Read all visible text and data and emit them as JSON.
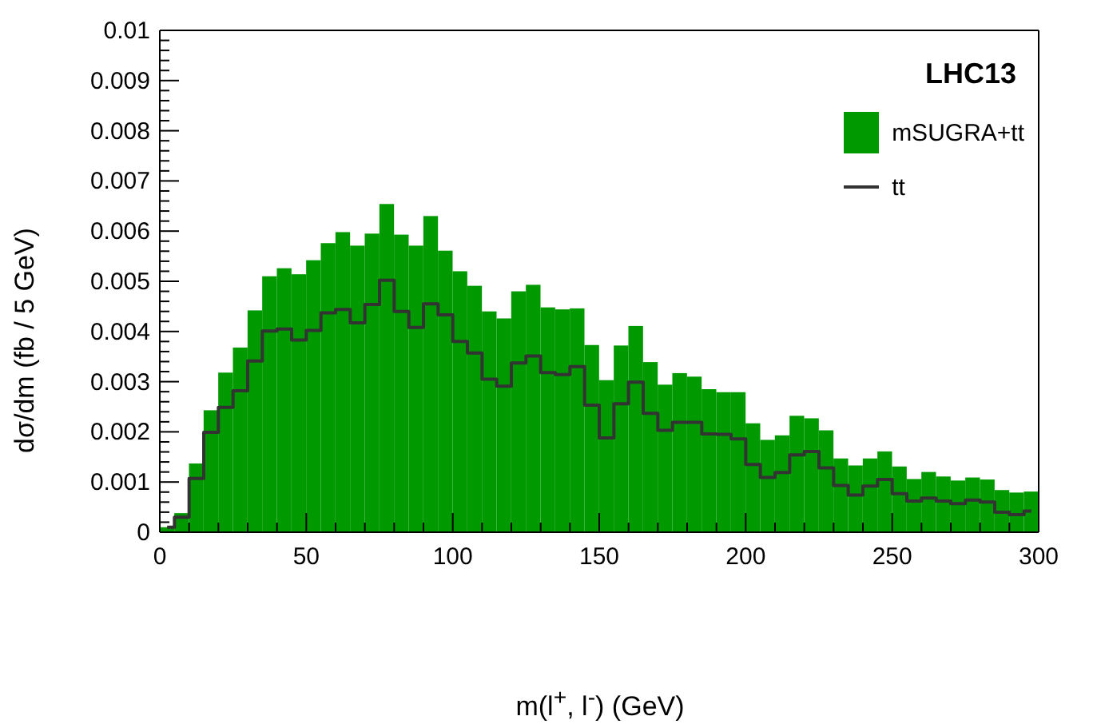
{
  "chart_data": {
    "type": "histogram",
    "xlabel": "m(l$^{+}$, l$^{-}$) (GeV)",
    "ylabel": "dσ/dm (fb / 5 GeV)",
    "annotations": [
      "LHC13"
    ],
    "legend": "top right",
    "grid": false,
    "bins": [
      0,
      5,
      10,
      15,
      20,
      25,
      30,
      35,
      40,
      45,
      50,
      55,
      60,
      65,
      70,
      75,
      80,
      85,
      90,
      95,
      100,
      105,
      110,
      115,
      120,
      125,
      130,
      135,
      140,
      145,
      150,
      155,
      160,
      165,
      170,
      175,
      180,
      185,
      190,
      195,
      200,
      205,
      210,
      215,
      220,
      225,
      230,
      235,
      240,
      245,
      250,
      255,
      260,
      265,
      270,
      275,
      280,
      285,
      290,
      295,
      300
    ],
    "series": [
      {
        "name": "mSUGRA+tt",
        "color": "#009900",
        "values": [
          0.0001,
          0.00038,
          0.00137,
          0.00243,
          0.00318,
          0.00368,
          0.00442,
          0.0051,
          0.00526,
          0.00514,
          0.00542,
          0.00576,
          0.00598,
          0.00571,
          0.00595,
          0.00654,
          0.00593,
          0.00571,
          0.0063,
          0.00561,
          0.0052,
          0.00491,
          0.0044,
          0.00426,
          0.0048,
          0.00493,
          0.00448,
          0.00444,
          0.00446,
          0.00373,
          0.00303,
          0.00372,
          0.00411,
          0.00339,
          0.00294,
          0.00317,
          0.0031,
          0.00285,
          0.00279,
          0.00279,
          0.00217,
          0.00184,
          0.00193,
          0.00232,
          0.00227,
          0.00203,
          0.00147,
          0.00133,
          0.00147,
          0.00161,
          0.00131,
          0.00106,
          0.0012,
          0.00111,
          0.00103,
          0.00109,
          0.00105,
          0.00084,
          0.00079,
          0.00081
        ]
      },
      {
        "name": "tt",
        "type": "step",
        "color": "#333333",
        "x": [
          2.5,
          7.5,
          12.5,
          17.5,
          22.5,
          27.5,
          32.5,
          37.5,
          42.5,
          47.5,
          52.5,
          57.5,
          62.5,
          67.5,
          72.5,
          77.5,
          82.5,
          87.5,
          92.5,
          97.5,
          102.5,
          107.5,
          112.5,
          117.5,
          122.5,
          127.5,
          132.5,
          137.5,
          142.5,
          147.5,
          152.5,
          157.5,
          162.5,
          167.5,
          172.5,
          177.5,
          182.5,
          187.5,
          192.5,
          197.5,
          202.5,
          207.5,
          212.5,
          217.5,
          222.5,
          227.5,
          232.5,
          237.5,
          242.5,
          247.5,
          252.5,
          257.5,
          262.5,
          267.5,
          272.5,
          277.5,
          282.5,
          287.5,
          292.5,
          297.5
        ],
        "values": [
          0.0001,
          0.0003,
          0.00107,
          0.00199,
          0.00249,
          0.00282,
          0.00341,
          0.00401,
          0.00405,
          0.00383,
          0.00402,
          0.00437,
          0.00444,
          0.00417,
          0.00454,
          0.00502,
          0.0044,
          0.00408,
          0.00455,
          0.00433,
          0.0038,
          0.00357,
          0.00305,
          0.00291,
          0.00337,
          0.00351,
          0.00318,
          0.00314,
          0.0033,
          0.00253,
          0.00188,
          0.00256,
          0.00299,
          0.00237,
          0.00203,
          0.00219,
          0.00219,
          0.00196,
          0.00195,
          0.00186,
          0.00135,
          0.00109,
          0.00119,
          0.00154,
          0.00161,
          0.00128,
          0.00093,
          0.00074,
          0.00092,
          0.00105,
          0.00077,
          0.00062,
          0.00068,
          0.00062,
          0.00057,
          0.00064,
          0.0006,
          0.0004,
          0.00035,
          0.00042
        ]
      }
    ],
    "xlim": [
      0,
      300
    ],
    "xticks": [
      0,
      {
        "value": 10,
        "label": null
      },
      {
        "value": 20,
        "label": null
      },
      {
        "value": 30,
        "label": null
      },
      {
        "value": 40,
        "label": null
      },
      50,
      {
        "value": 60,
        "label": null
      },
      {
        "value": 70,
        "label": null
      },
      {
        "value": 80,
        "label": null
      },
      {
        "value": 90,
        "label": null
      },
      100,
      {
        "value": 110,
        "label": null
      },
      {
        "value": 120,
        "label": null
      },
      {
        "value": 130,
        "label": null
      },
      {
        "value": 140,
        "label": null
      },
      150,
      {
        "value": 160,
        "label": null
      },
      {
        "value": 170,
        "label": null
      },
      {
        "value": 180,
        "label": null
      },
      {
        "value": 190,
        "label": null
      },
      200,
      {
        "value": 210,
        "label": null
      },
      {
        "value": 220,
        "label": null
      },
      {
        "value": 230,
        "label": null
      },
      {
        "value": 240,
        "label": null
      },
      250,
      {
        "value": 260,
        "label": null
      },
      {
        "value": 270,
        "label": null
      },
      {
        "value": 280,
        "label": null
      },
      {
        "value": 290,
        "label": null
      },
      300
    ],
    "ylim": [
      0,
      0.01
    ],
    "yticks": [
      0,
      {
        "value": 0.0002,
        "label": null
      },
      {
        "value": 0.0004,
        "label": null
      },
      {
        "value": 0.0006,
        "label": null
      },
      {
        "value": 0.0008,
        "label": null
      },
      0.001,
      {
        "value": 0.0012,
        "label": null
      },
      {
        "value": 0.0014,
        "label": null
      },
      {
        "value": 0.0016,
        "label": null
      },
      {
        "value": 0.0018,
        "label": null
      },
      0.002,
      {
        "value": 0.0022,
        "label": null
      },
      {
        "value": 0.0024,
        "label": null
      },
      {
        "value": 0.0026,
        "label": null
      },
      {
        "value": 0.0028,
        "label": null
      },
      0.003,
      {
        "value": 0.0032,
        "label": null
      },
      {
        "value": 0.0034,
        "label": null
      },
      {
        "value": 0.0036,
        "label": null
      },
      {
        "value": 0.0038,
        "label": null
      },
      0.004,
      {
        "value": 0.0042,
        "label": null
      },
      {
        "value": 0.0044,
        "label": null
      },
      {
        "value": 0.0046,
        "label": null
      },
      {
        "value": 0.0048,
        "label": null
      },
      0.005,
      {
        "value": 0.0052,
        "label": null
      },
      {
        "value": 0.0054,
        "label": null
      },
      {
        "value": 0.0056,
        "label": null
      },
      {
        "value": 0.0058,
        "label": null
      },
      0.006,
      {
        "value": 0.0062,
        "label": null
      },
      {
        "value": 0.0064,
        "label": null
      },
      {
        "value": 0.0066,
        "label": null
      },
      {
        "value": 0.0068,
        "label": null
      },
      0.007,
      {
        "value": 0.0072,
        "label": null
      },
      {
        "value": 0.0074,
        "label": null
      },
      {
        "value": 0.0076,
        "label": null
      },
      {
        "value": 0.0078,
        "label": null
      },
      0.008,
      {
        "value": 0.0082,
        "label": null
      },
      {
        "value": 0.0084,
        "label": null
      },
      {
        "value": 0.0086,
        "label": null
      },
      {
        "value": 0.0088,
        "label": null
      },
      0.009,
      {
        "value": 0.0092,
        "label": null
      },
      {
        "value": 0.0094,
        "label": null
      },
      {
        "value": 0.0096,
        "label": null
      },
      {
        "value": 0.0098,
        "label": null
      },
      0.01
    ]
  }
}
